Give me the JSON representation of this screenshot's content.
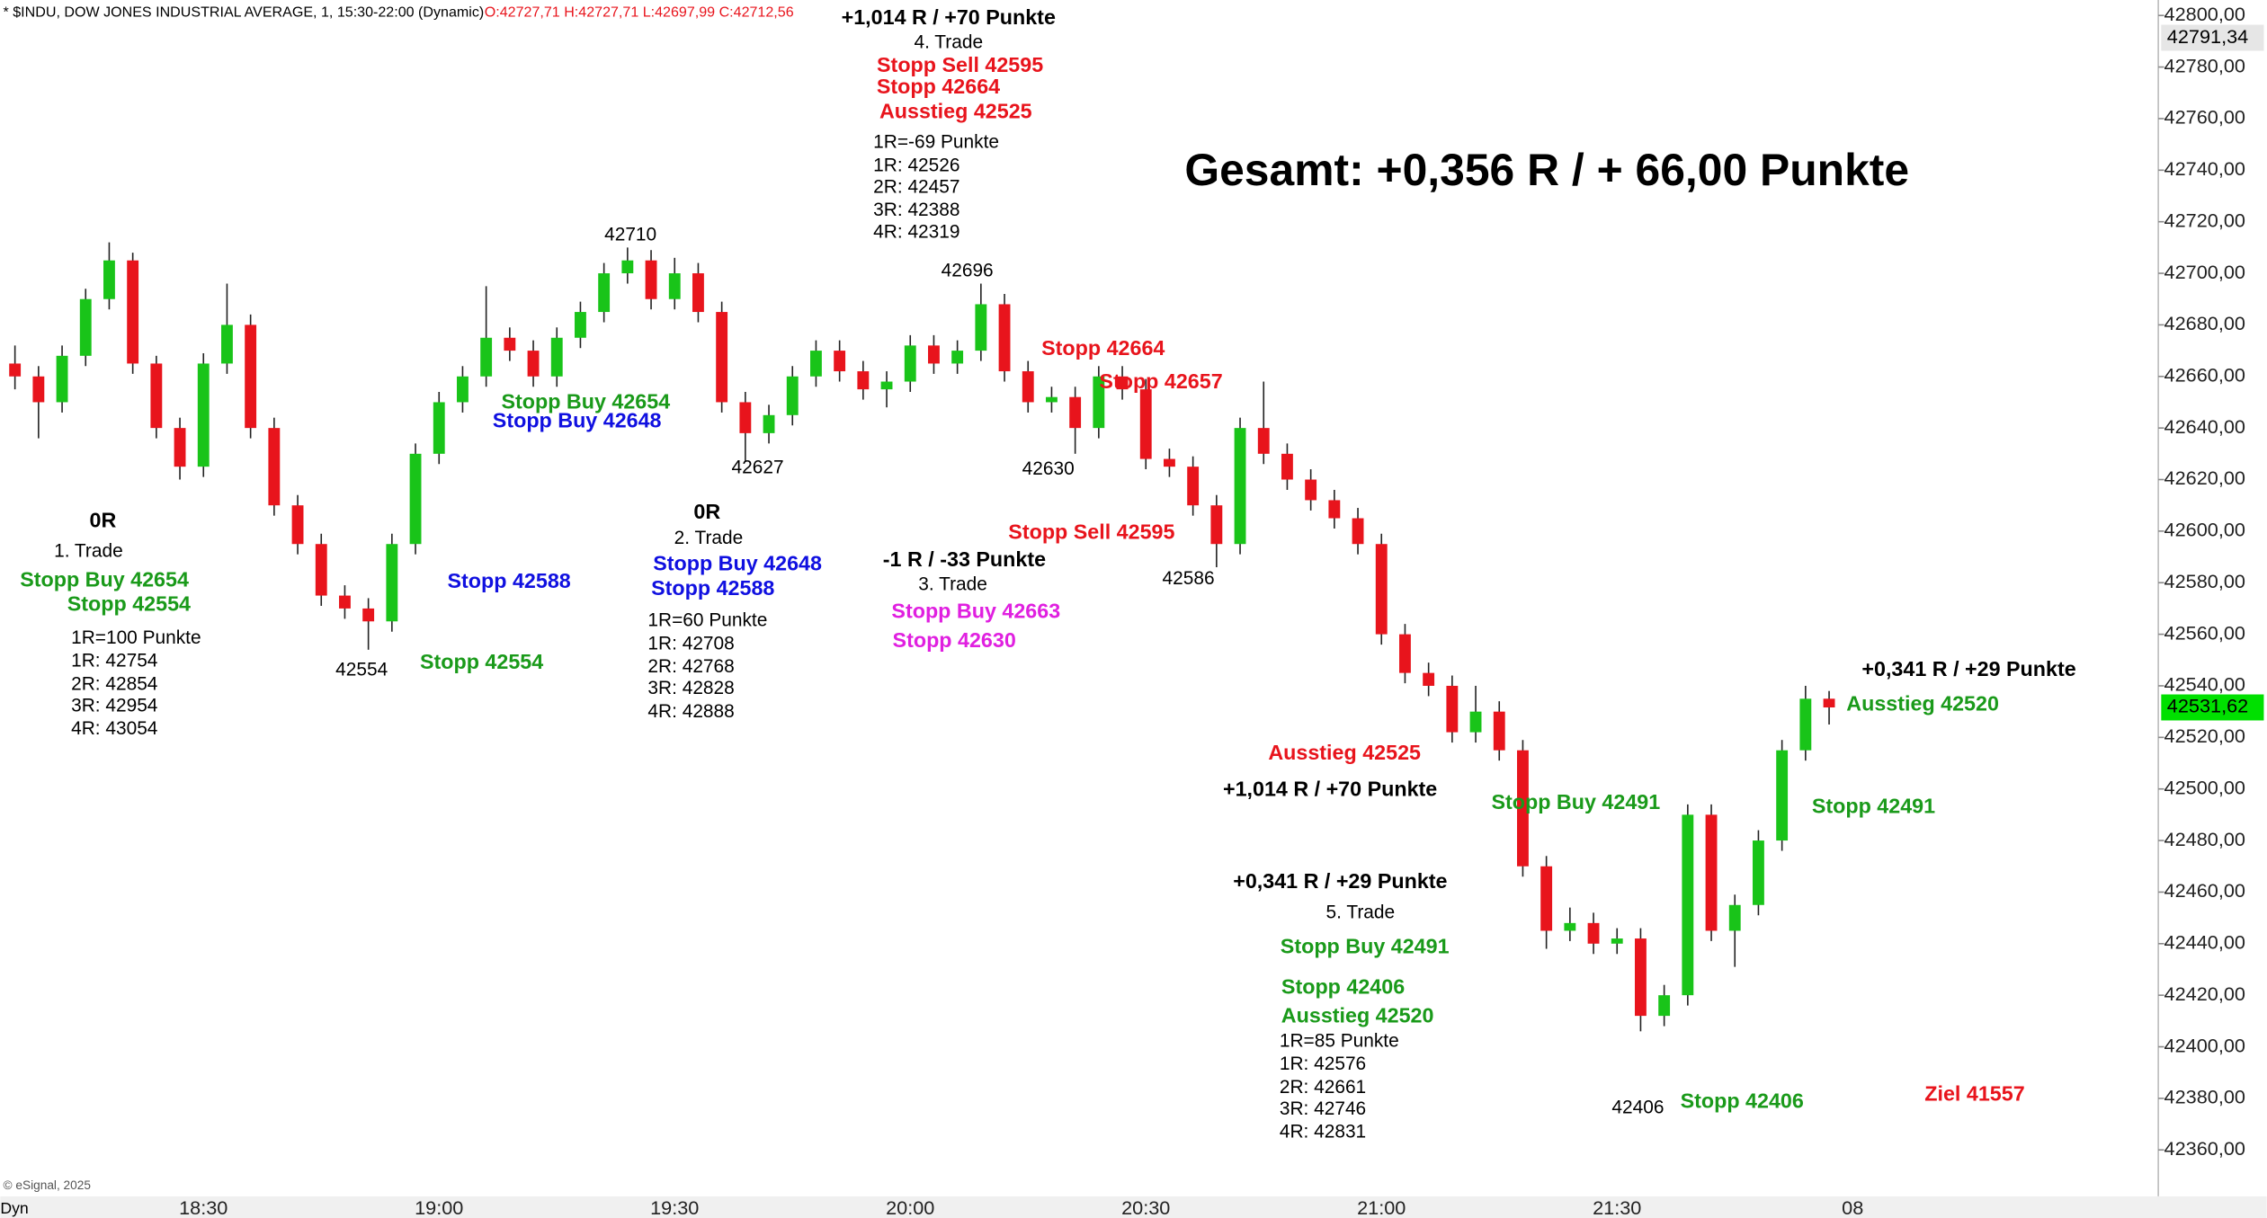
{
  "chart_data": {
    "type": "candlestick",
    "title": "* $INDU, DOW JONES INDUSTRIAL AVERAGE, 1, 15:30-22:00 (Dynamic)",
    "ohlc_label": "O:42727,71 H:42727,71 L:42697,99 C:42712,56",
    "headline": "Gesamt: +0,356 R / + 66,00 Punkte",
    "credit": "© eSignal, 2025",
    "corner_label": "Dyn",
    "up_color": "#19c419",
    "down_color": "#e8141c",
    "categories": [
      null,
      null,
      null,
      null,
      null,
      null,
      null,
      null,
      "18:30",
      null,
      null,
      null,
      null,
      null,
      null,
      null,
      null,
      null,
      "19:00",
      null,
      null,
      null,
      null,
      null,
      null,
      null,
      null,
      null,
      "19:30",
      null,
      null,
      null,
      null,
      null,
      null,
      null,
      null,
      null,
      "20:00",
      null,
      null,
      null,
      null,
      null,
      null,
      null,
      null,
      null,
      "20:30",
      null,
      null,
      null,
      null,
      null,
      null,
      null,
      null,
      null,
      "21:00",
      null,
      null,
      null,
      null,
      null,
      null,
      null,
      null,
      null,
      "21:30",
      null,
      null,
      null,
      null,
      null,
      null,
      null,
      null,
      null,
      "08"
    ],
    "ohlc": [
      [
        42665,
        42672,
        42655,
        42660
      ],
      [
        42660,
        42664,
        42636,
        42650
      ],
      [
        42650,
        42672,
        42646,
        42668
      ],
      [
        42668,
        42694,
        42664,
        42690
      ],
      [
        42690,
        42712,
        42686,
        42705
      ],
      [
        42705,
        42708,
        42661,
        42665
      ],
      [
        42665,
        42668,
        42636,
        42640
      ],
      [
        42640,
        42644,
        42620,
        42625
      ],
      [
        42625,
        42669,
        42621,
        42665
      ],
      [
        42665,
        42696,
        42661,
        42680
      ],
      [
        42680,
        42684,
        42636,
        42640
      ],
      [
        42640,
        42644,
        42606,
        42610
      ],
      [
        42610,
        42614,
        42591,
        42595
      ],
      [
        42595,
        42599,
        42571,
        42575
      ],
      [
        42575,
        42579,
        42566,
        42570
      ],
      [
        42570,
        42574,
        42554,
        42565
      ],
      [
        42565,
        42599,
        42561,
        42595
      ],
      [
        42595,
        42634,
        42591,
        42630
      ],
      [
        42630,
        42654,
        42626,
        42650
      ],
      [
        42650,
        42664,
        42646,
        42660
      ],
      [
        42660,
        42695,
        42656,
        42675
      ],
      [
        42675,
        42679,
        42666,
        42670
      ],
      [
        42670,
        42674,
        42656,
        42660
      ],
      [
        42660,
        42679,
        42656,
        42675
      ],
      [
        42675,
        42689,
        42671,
        42685
      ],
      [
        42685,
        42704,
        42681,
        42700
      ],
      [
        42700,
        42710,
        42696,
        42705
      ],
      [
        42705,
        42709,
        42686,
        42690
      ],
      [
        42690,
        42706,
        42686,
        42700
      ],
      [
        42700,
        42704,
        42681,
        42685
      ],
      [
        42685,
        42689,
        42646,
        42650
      ],
      [
        42650,
        42654,
        42627,
        42638
      ],
      [
        42638,
        42649,
        42634,
        42645
      ],
      [
        42645,
        42664,
        42641,
        42660
      ],
      [
        42660,
        42674,
        42656,
        42670
      ],
      [
        42670,
        42674,
        42658,
        42662
      ],
      [
        42662,
        42666,
        42651,
        42655
      ],
      [
        42655,
        42662,
        42648,
        42658
      ],
      [
        42658,
        42676,
        42654,
        42672
      ],
      [
        42672,
        42676,
        42661,
        42665
      ],
      [
        42665,
        42674,
        42661,
        42670
      ],
      [
        42670,
        42696,
        42666,
        42688
      ],
      [
        42688,
        42692,
        42658,
        42662
      ],
      [
        42662,
        42666,
        42646,
        42650
      ],
      [
        42650,
        42656,
        42646,
        42652
      ],
      [
        42652,
        42656,
        42630,
        42640
      ],
      [
        42640,
        42664,
        42636,
        42660
      ],
      [
        42660,
        42664,
        42651,
        42655
      ],
      [
        42655,
        42659,
        42624,
        42628
      ],
      [
        42628,
        42632,
        42621,
        42625
      ],
      [
        42625,
        42629,
        42606,
        42610
      ],
      [
        42610,
        42614,
        42586,
        42595
      ],
      [
        42595,
        42644,
        42591,
        42640
      ],
      [
        42640,
        42658,
        42626,
        42630
      ],
      [
        42630,
        42634,
        42616,
        42620
      ],
      [
        42620,
        42624,
        42608,
        42612
      ],
      [
        42612,
        42616,
        42601,
        42605
      ],
      [
        42605,
        42609,
        42591,
        42595
      ],
      [
        42595,
        42599,
        42556,
        42560
      ],
      [
        42560,
        42564,
        42541,
        42545
      ],
      [
        42545,
        42549,
        42536,
        42540
      ],
      [
        42540,
        42544,
        42518,
        42522
      ],
      [
        42522,
        42540,
        42518,
        42530
      ],
      [
        42530,
        42534,
        42511,
        42515
      ],
      [
        42515,
        42519,
        42466,
        42470
      ],
      [
        42470,
        42474,
        42438,
        42445
      ],
      [
        42445,
        42454,
        42441,
        42448
      ],
      [
        42448,
        42452,
        42436,
        42440
      ],
      [
        42440,
        42446,
        42436,
        42442
      ],
      [
        42442,
        42446,
        42406,
        42412
      ],
      [
        42412,
        42424,
        42408,
        42420
      ],
      [
        42420,
        42494,
        42416,
        42490
      ],
      [
        42490,
        42494,
        42441,
        42445
      ],
      [
        42445,
        42459,
        42431,
        42455
      ],
      [
        42455,
        42484,
        42451,
        42480
      ],
      [
        42480,
        42519,
        42476,
        42515
      ],
      [
        42515,
        42540,
        42511,
        42535
      ],
      [
        42535,
        42538,
        42525,
        42531.62
      ],
      null
    ],
    "ylim": [
      42342,
      42806
    ],
    "yticks": [
      {
        "value": 42360,
        "label": "42360,00"
      },
      {
        "value": 42380,
        "label": "42380,00"
      },
      {
        "value": 42400,
        "label": "42400,00"
      },
      {
        "value": 42420,
        "label": "42420,00"
      },
      {
        "value": 42440,
        "label": "42440,00"
      },
      {
        "value": 42460,
        "label": "42460,00"
      },
      {
        "value": 42480,
        "label": "42480,00"
      },
      {
        "value": 42500,
        "label": "42500,00"
      },
      {
        "value": 42520,
        "label": "42520,00"
      },
      {
        "value": 42540,
        "label": "42540,00"
      },
      {
        "value": 42560,
        "label": "42560,00"
      },
      {
        "value": 42580,
        "label": "42580,00"
      },
      {
        "value": 42600,
        "label": "42600,00"
      },
      {
        "value": 42620,
        "label": "42620,00"
      },
      {
        "value": 42640,
        "label": "42640,00"
      },
      {
        "value": 42660,
        "label": "42660,00"
      },
      {
        "value": 42680,
        "label": "42680,00"
      },
      {
        "value": 42700,
        "label": "42700,00"
      },
      {
        "value": 42720,
        "label": "42720,00"
      },
      {
        "value": 42740,
        "label": "42740,00"
      },
      {
        "value": 42760,
        "label": "42760,00"
      },
      {
        "value": 42780,
        "label": "42780,00"
      },
      {
        "value": 42800,
        "label": "42800,00"
      }
    ],
    "price_markers": [
      {
        "value": 42791.34,
        "label": "42791,34",
        "color": "#e6e6e6"
      },
      {
        "value": 42531.62,
        "label": "42531,62",
        "color": "#00e000"
      }
    ],
    "annotations": [
      "+1,014 R / +70 Punkte",
      "4. Trade",
      "Stopp Sell 42595",
      "Stopp 42664",
      "Ausstieg 42525",
      "1R=-69 Punkte",
      "1R: 42526",
      "2R: 42457",
      "3R: 42388",
      "4R: 42319",
      "42710",
      "42696",
      "42627",
      "42630",
      "42586",
      "42554",
      "42406",
      "Stopp 42664",
      "Stopp 42657",
      "Stopp Buy 42654",
      "Stopp Buy 42648",
      "0R",
      "1. Trade",
      "Stopp Buy 42654",
      "Stopp 42554",
      "1R=100 Punkte",
      "1R: 42754",
      "2R: 42854",
      "3R: 42954",
      "4R: 43054",
      "Stopp 42588",
      "Stopp 42554",
      "0R",
      "2. Trade",
      "Stopp Buy 42648",
      "Stopp 42588",
      "1R=60 Punkte",
      "1R: 42708",
      "2R: 42768",
      "3R: 42828",
      "4R: 42888",
      "-1 R / -33 Punkte",
      "3. Trade",
      "Stopp Buy 42663",
      "Stopp 42630",
      "Stopp Sell 42595",
      "Ausstieg 42525",
      "+1,014 R / +70 Punkte",
      "Stopp Buy 42491",
      "+0,341 R / +29 Punkte",
      "5. Trade",
      "Stopp Buy 42491",
      "Stopp 42406",
      "Ausstieg 42520",
      "1R=85 Punkte",
      "1R: 42576",
      "2R: 42661",
      "3R: 42746",
      "4R: 42831",
      "Stopp 42406",
      "+0,341 R / +29 Punkte",
      "Ausstieg 42520",
      "Stopp 42491",
      "Ziel 41557"
    ]
  }
}
